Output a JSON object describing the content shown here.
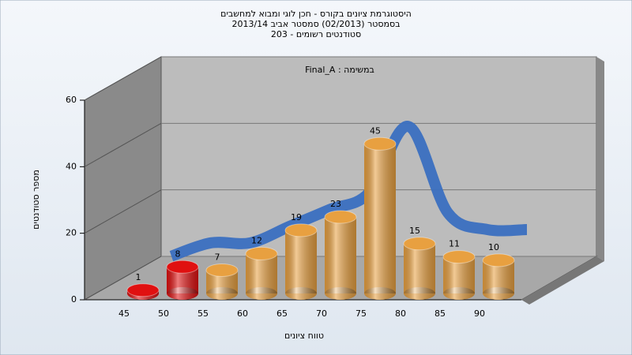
{
  "chart_data": {
    "type": "bar3d",
    "title": "היסטוגרמת ציונים בקורס - חכן לוגי ומבוא למחשבים",
    "subtitle": "בסמסטר  (02/2013)  סמסטר אביב 2013/14",
    "subtitle2": "סטודנטים רשומים - 203",
    "annotation": "Final_A : במשימה",
    "x_label": "טווח ציונים",
    "y_label": "מספר סטודנטים",
    "categories": [
      "45",
      "50",
      "55",
      "60",
      "65",
      "70",
      "75",
      "80",
      "85",
      "90"
    ],
    "values": [
      1,
      8,
      7,
      12,
      19,
      23,
      45,
      15,
      11,
      10
    ],
    "colors": [
      "#e01010",
      "#e01010",
      "#e8a040",
      "#e8a040",
      "#e8a040",
      "#e8a040",
      "#e8a040",
      "#e8a040",
      "#e8a040",
      "#e8a040"
    ],
    "trend": {
      "values": [
        6,
        10,
        10,
        15,
        20,
        25,
        45,
        19,
        14,
        14
      ],
      "color": "#3a6fc0"
    },
    "ylim": [
      0,
      60
    ],
    "yticks": [
      0,
      20,
      40,
      60
    ]
  }
}
